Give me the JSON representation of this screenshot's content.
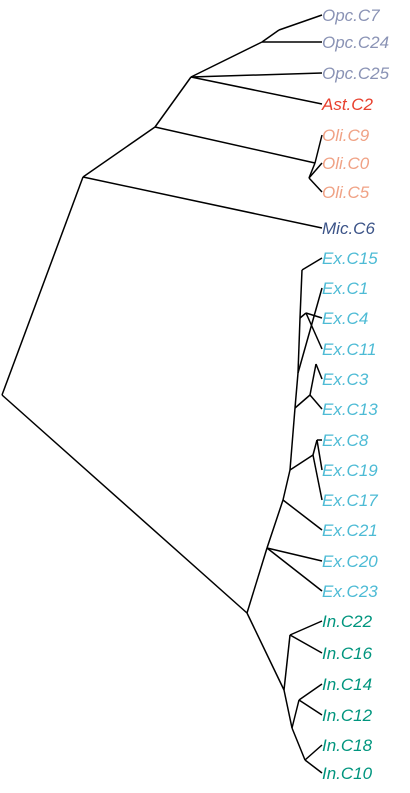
{
  "colors": {
    "opc": "#8a93b5",
    "ast": "#e8412f",
    "oli": "#f0a285",
    "mic": "#3c5488",
    "ex": "#4dbbd5",
    "in": "#00957e"
  },
  "leaves": [
    {
      "label": "Opc.C7",
      "group": "opc"
    },
    {
      "label": "Opc.C24",
      "group": "opc"
    },
    {
      "label": "Opc.C25",
      "group": "opc"
    },
    {
      "label": "Ast.C2",
      "group": "ast"
    },
    {
      "label": "Oli.C9",
      "group": "oli"
    },
    {
      "label": "Oli.C0",
      "group": "oli"
    },
    {
      "label": "Oli.C5",
      "group": "oli"
    },
    {
      "label": "Mic.C6",
      "group": "mic"
    },
    {
      "label": "Ex.C15",
      "group": "ex"
    },
    {
      "label": "Ex.C1",
      "group": "ex"
    },
    {
      "label": "Ex.C4",
      "group": "ex"
    },
    {
      "label": "Ex.C11",
      "group": "ex"
    },
    {
      "label": "Ex.C3",
      "group": "ex"
    },
    {
      "label": "Ex.C13",
      "group": "ex"
    },
    {
      "label": "Ex.C8",
      "group": "ex"
    },
    {
      "label": "Ex.C19",
      "group": "ex"
    },
    {
      "label": "Ex.C17",
      "group": "ex"
    },
    {
      "label": "Ex.C21",
      "group": "ex"
    },
    {
      "label": "Ex.C20",
      "group": "ex"
    },
    {
      "label": "Ex.C23",
      "group": "ex"
    },
    {
      "label": "In.C22",
      "group": "in"
    },
    {
      "label": "In.C16",
      "group": "in"
    },
    {
      "label": "In.C14",
      "group": "in"
    },
    {
      "label": "In.C12",
      "group": "in"
    },
    {
      "label": "In.C18",
      "group": "in"
    },
    {
      "label": "In.C10",
      "group": "in"
    }
  ]
}
